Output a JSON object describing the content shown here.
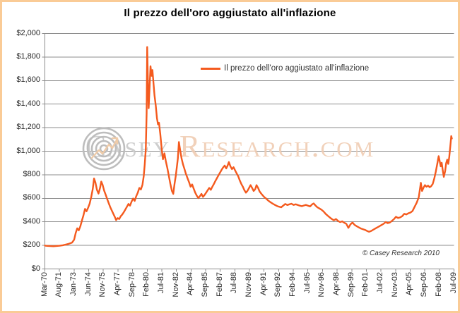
{
  "page": {
    "title": "Il prezzo dell'oro aggiustato all'inflazione"
  },
  "legend": {
    "label": "Il prezzo dell'oro aggiustato all'inflazione"
  },
  "watermark": {
    "part1": "Casey",
    "part2": "Research.com"
  },
  "footer": {
    "copyright": "© Casey Research 2010"
  },
  "colors": {
    "line": "#F45A1E",
    "frame_border": "#FACB96",
    "grid": "#8C8C8C",
    "watermark_gray": "#C9C9C9",
    "watermark_tan": "#F0CDB3"
  },
  "chart_data": {
    "type": "line",
    "title": "Il prezzo dell'oro aggiustato all'inflazione",
    "xlabel": "",
    "ylabel": "",
    "ylim": [
      0,
      2000
    ],
    "grid": "horizontal",
    "legend_position": "top-center",
    "y_ticks": [
      "$0",
      "$200",
      "$400",
      "$600",
      "$800",
      "$1,000",
      "$1,200",
      "$1,400",
      "$1,600",
      "$1,800",
      "$2,000"
    ],
    "x_ticks": [
      "Mar-70",
      "Aug-71",
      "Jan-73",
      "Jun-74",
      "Nov-75",
      "Apr-77",
      "Sep-78",
      "Feb-80",
      "Jul-81",
      "Nov-82",
      "Apr-84",
      "Sep-85",
      "Feb-87",
      "Jul-88",
      "Nov-89",
      "Apr-91",
      "Sep-92",
      "Feb-94",
      "Jul-95",
      "Nov-96",
      "Apr-98",
      "Sep-99",
      "Feb-01",
      "Jul-02",
      "Nov-03",
      "Apr-05",
      "Sep-06",
      "Feb-08",
      "Jul-09"
    ],
    "series": [
      {
        "name": "Il prezzo dell'oro aggiustato all'inflazione",
        "color": "#F45A1E",
        "points": [
          [
            1970.17,
            198
          ],
          [
            1970.4,
            196
          ],
          [
            1970.7,
            194
          ],
          [
            1971.0,
            193
          ],
          [
            1971.3,
            195
          ],
          [
            1971.6,
            197
          ],
          [
            1971.9,
            201
          ],
          [
            1972.2,
            207
          ],
          [
            1972.5,
            214
          ],
          [
            1972.8,
            224
          ],
          [
            1973.0,
            248
          ],
          [
            1973.15,
            305
          ],
          [
            1973.3,
            345
          ],
          [
            1973.45,
            328
          ],
          [
            1973.6,
            362
          ],
          [
            1973.75,
            410
          ],
          [
            1973.9,
            455
          ],
          [
            1974.05,
            510
          ],
          [
            1974.2,
            490
          ],
          [
            1974.35,
            520
          ],
          [
            1974.5,
            555
          ],
          [
            1974.65,
            610
          ],
          [
            1974.8,
            680
          ],
          [
            1974.92,
            768
          ],
          [
            1975.05,
            735
          ],
          [
            1975.2,
            672
          ],
          [
            1975.35,
            640
          ],
          [
            1975.5,
            688
          ],
          [
            1975.62,
            742
          ],
          [
            1975.75,
            715
          ],
          [
            1975.9,
            665
          ],
          [
            1976.05,
            630
          ],
          [
            1976.2,
            592
          ],
          [
            1976.35,
            556
          ],
          [
            1976.5,
            522
          ],
          [
            1976.65,
            494
          ],
          [
            1976.8,
            465
          ],
          [
            1976.95,
            438
          ],
          [
            1977.05,
            415
          ],
          [
            1977.2,
            432
          ],
          [
            1977.35,
            424
          ],
          [
            1977.5,
            448
          ],
          [
            1977.65,
            462
          ],
          [
            1977.8,
            482
          ],
          [
            1977.95,
            505
          ],
          [
            1978.1,
            528
          ],
          [
            1978.25,
            552
          ],
          [
            1978.4,
            538
          ],
          [
            1978.55,
            572
          ],
          [
            1978.7,
            598
          ],
          [
            1978.85,
            578
          ],
          [
            1979.0,
            618
          ],
          [
            1979.15,
            648
          ],
          [
            1979.3,
            688
          ],
          [
            1979.45,
            675
          ],
          [
            1979.6,
            715
          ],
          [
            1979.72,
            788
          ],
          [
            1979.82,
            885
          ],
          [
            1979.92,
            1015
          ],
          [
            1980.0,
            1320
          ],
          [
            1980.06,
            1885
          ],
          [
            1980.14,
            1550
          ],
          [
            1980.2,
            1365
          ],
          [
            1980.3,
            1570
          ],
          [
            1980.38,
            1722
          ],
          [
            1980.48,
            1640
          ],
          [
            1980.56,
            1690
          ],
          [
            1980.66,
            1588
          ],
          [
            1980.76,
            1478
          ],
          [
            1980.88,
            1390
          ],
          [
            1981.0,
            1282
          ],
          [
            1981.1,
            1228
          ],
          [
            1981.2,
            1242
          ],
          [
            1981.32,
            1148
          ],
          [
            1981.45,
            1028
          ],
          [
            1981.58,
            932
          ],
          [
            1981.72,
            982
          ],
          [
            1981.85,
            918
          ],
          [
            1982.0,
            858
          ],
          [
            1982.15,
            788
          ],
          [
            1982.3,
            722
          ],
          [
            1982.45,
            662
          ],
          [
            1982.58,
            638
          ],
          [
            1982.7,
            722
          ],
          [
            1982.82,
            792
          ],
          [
            1982.92,
            862
          ],
          [
            1983.02,
            938
          ],
          [
            1983.12,
            1078
          ],
          [
            1983.25,
            1005
          ],
          [
            1983.38,
            938
          ],
          [
            1983.52,
            888
          ],
          [
            1983.65,
            852
          ],
          [
            1983.8,
            808
          ],
          [
            1983.95,
            772
          ],
          [
            1984.1,
            738
          ],
          [
            1984.25,
            698
          ],
          [
            1984.4,
            718
          ],
          [
            1984.55,
            682
          ],
          [
            1984.7,
            648
          ],
          [
            1984.85,
            622
          ],
          [
            1985.0,
            602
          ],
          [
            1985.15,
            618
          ],
          [
            1985.3,
            638
          ],
          [
            1985.45,
            612
          ],
          [
            1985.6,
            628
          ],
          [
            1985.75,
            648
          ],
          [
            1985.9,
            668
          ],
          [
            1986.05,
            688
          ],
          [
            1986.2,
            672
          ],
          [
            1986.35,
            698
          ],
          [
            1986.5,
            722
          ],
          [
            1986.65,
            748
          ],
          [
            1986.8,
            772
          ],
          [
            1986.95,
            795
          ],
          [
            1987.1,
            818
          ],
          [
            1987.25,
            842
          ],
          [
            1987.4,
            862
          ],
          [
            1987.55,
            878
          ],
          [
            1987.7,
            854
          ],
          [
            1987.85,
            882
          ],
          [
            1987.95,
            908
          ],
          [
            1988.1,
            872
          ],
          [
            1988.25,
            848
          ],
          [
            1988.4,
            864
          ],
          [
            1988.55,
            838
          ],
          [
            1988.7,
            812
          ],
          [
            1988.85,
            788
          ],
          [
            1989.0,
            752
          ],
          [
            1989.15,
            722
          ],
          [
            1989.3,
            698
          ],
          [
            1989.45,
            668
          ],
          [
            1989.6,
            648
          ],
          [
            1989.75,
            664
          ],
          [
            1989.9,
            688
          ],
          [
            1990.05,
            712
          ],
          [
            1990.2,
            688
          ],
          [
            1990.35,
            662
          ],
          [
            1990.5,
            678
          ],
          [
            1990.62,
            712
          ],
          [
            1990.78,
            688
          ],
          [
            1990.92,
            658
          ],
          [
            1991.1,
            638
          ],
          [
            1991.25,
            622
          ],
          [
            1991.4,
            608
          ],
          [
            1991.55,
            598
          ],
          [
            1991.7,
            585
          ],
          [
            1991.85,
            574
          ],
          [
            1992.0,
            565
          ],
          [
            1992.2,
            554
          ],
          [
            1992.4,
            544
          ],
          [
            1992.6,
            535
          ],
          [
            1992.8,
            529
          ],
          [
            1993.0,
            524
          ],
          [
            1993.2,
            538
          ],
          [
            1993.4,
            552
          ],
          [
            1993.6,
            543
          ],
          [
            1993.8,
            549
          ],
          [
            1994.0,
            554
          ],
          [
            1994.2,
            544
          ],
          [
            1994.4,
            549
          ],
          [
            1994.6,
            544
          ],
          [
            1994.8,
            538
          ],
          [
            1995.0,
            533
          ],
          [
            1995.2,
            539
          ],
          [
            1995.4,
            544
          ],
          [
            1995.6,
            537
          ],
          [
            1995.8,
            531
          ],
          [
            1996.0,
            549
          ],
          [
            1996.15,
            556
          ],
          [
            1996.3,
            541
          ],
          [
            1996.5,
            524
          ],
          [
            1996.7,
            514
          ],
          [
            1996.9,
            503
          ],
          [
            1997.1,
            488
          ],
          [
            1997.3,
            468
          ],
          [
            1997.5,
            452
          ],
          [
            1997.7,
            438
          ],
          [
            1997.9,
            424
          ],
          [
            1998.1,
            413
          ],
          [
            1998.3,
            424
          ],
          [
            1998.5,
            408
          ],
          [
            1998.7,
            398
          ],
          [
            1998.9,
            404
          ],
          [
            1999.1,
            393
          ],
          [
            1999.3,
            383
          ],
          [
            1999.5,
            349
          ],
          [
            1999.7,
            379
          ],
          [
            1999.9,
            394
          ],
          [
            2000.1,
            374
          ],
          [
            2000.3,
            363
          ],
          [
            2000.5,
            353
          ],
          [
            2000.7,
            344
          ],
          [
            2000.9,
            338
          ],
          [
            2001.1,
            332
          ],
          [
            2001.3,
            323
          ],
          [
            2001.5,
            316
          ],
          [
            2001.7,
            323
          ],
          [
            2001.9,
            333
          ],
          [
            2002.1,
            343
          ],
          [
            2002.3,
            353
          ],
          [
            2002.5,
            363
          ],
          [
            2002.7,
            373
          ],
          [
            2002.9,
            383
          ],
          [
            2003.1,
            398
          ],
          [
            2003.3,
            389
          ],
          [
            2003.5,
            394
          ],
          [
            2003.7,
            408
          ],
          [
            2003.9,
            423
          ],
          [
            2004.1,
            443
          ],
          [
            2004.3,
            433
          ],
          [
            2004.5,
            438
          ],
          [
            2004.7,
            448
          ],
          [
            2004.9,
            468
          ],
          [
            2005.1,
            463
          ],
          [
            2005.3,
            473
          ],
          [
            2005.5,
            479
          ],
          [
            2005.7,
            492
          ],
          [
            2005.9,
            528
          ],
          [
            2006.1,
            562
          ],
          [
            2006.3,
            608
          ],
          [
            2006.5,
            732
          ],
          [
            2006.62,
            662
          ],
          [
            2006.75,
            688
          ],
          [
            2006.9,
            712
          ],
          [
            2007.05,
            698
          ],
          [
            2007.2,
            708
          ],
          [
            2007.35,
            694
          ],
          [
            2007.5,
            703
          ],
          [
            2007.65,
            722
          ],
          [
            2007.8,
            768
          ],
          [
            2007.95,
            828
          ],
          [
            2008.1,
            898
          ],
          [
            2008.22,
            958
          ],
          [
            2008.32,
            918
          ],
          [
            2008.42,
            872
          ],
          [
            2008.52,
            902
          ],
          [
            2008.62,
            838
          ],
          [
            2008.72,
            782
          ],
          [
            2008.85,
            832
          ],
          [
            2008.95,
            898
          ],
          [
            2009.05,
            928
          ],
          [
            2009.15,
            892
          ],
          [
            2009.25,
            952
          ],
          [
            2009.35,
            1042
          ],
          [
            2009.44,
            1128
          ],
          [
            2009.5,
            1108
          ]
        ]
      }
    ]
  }
}
